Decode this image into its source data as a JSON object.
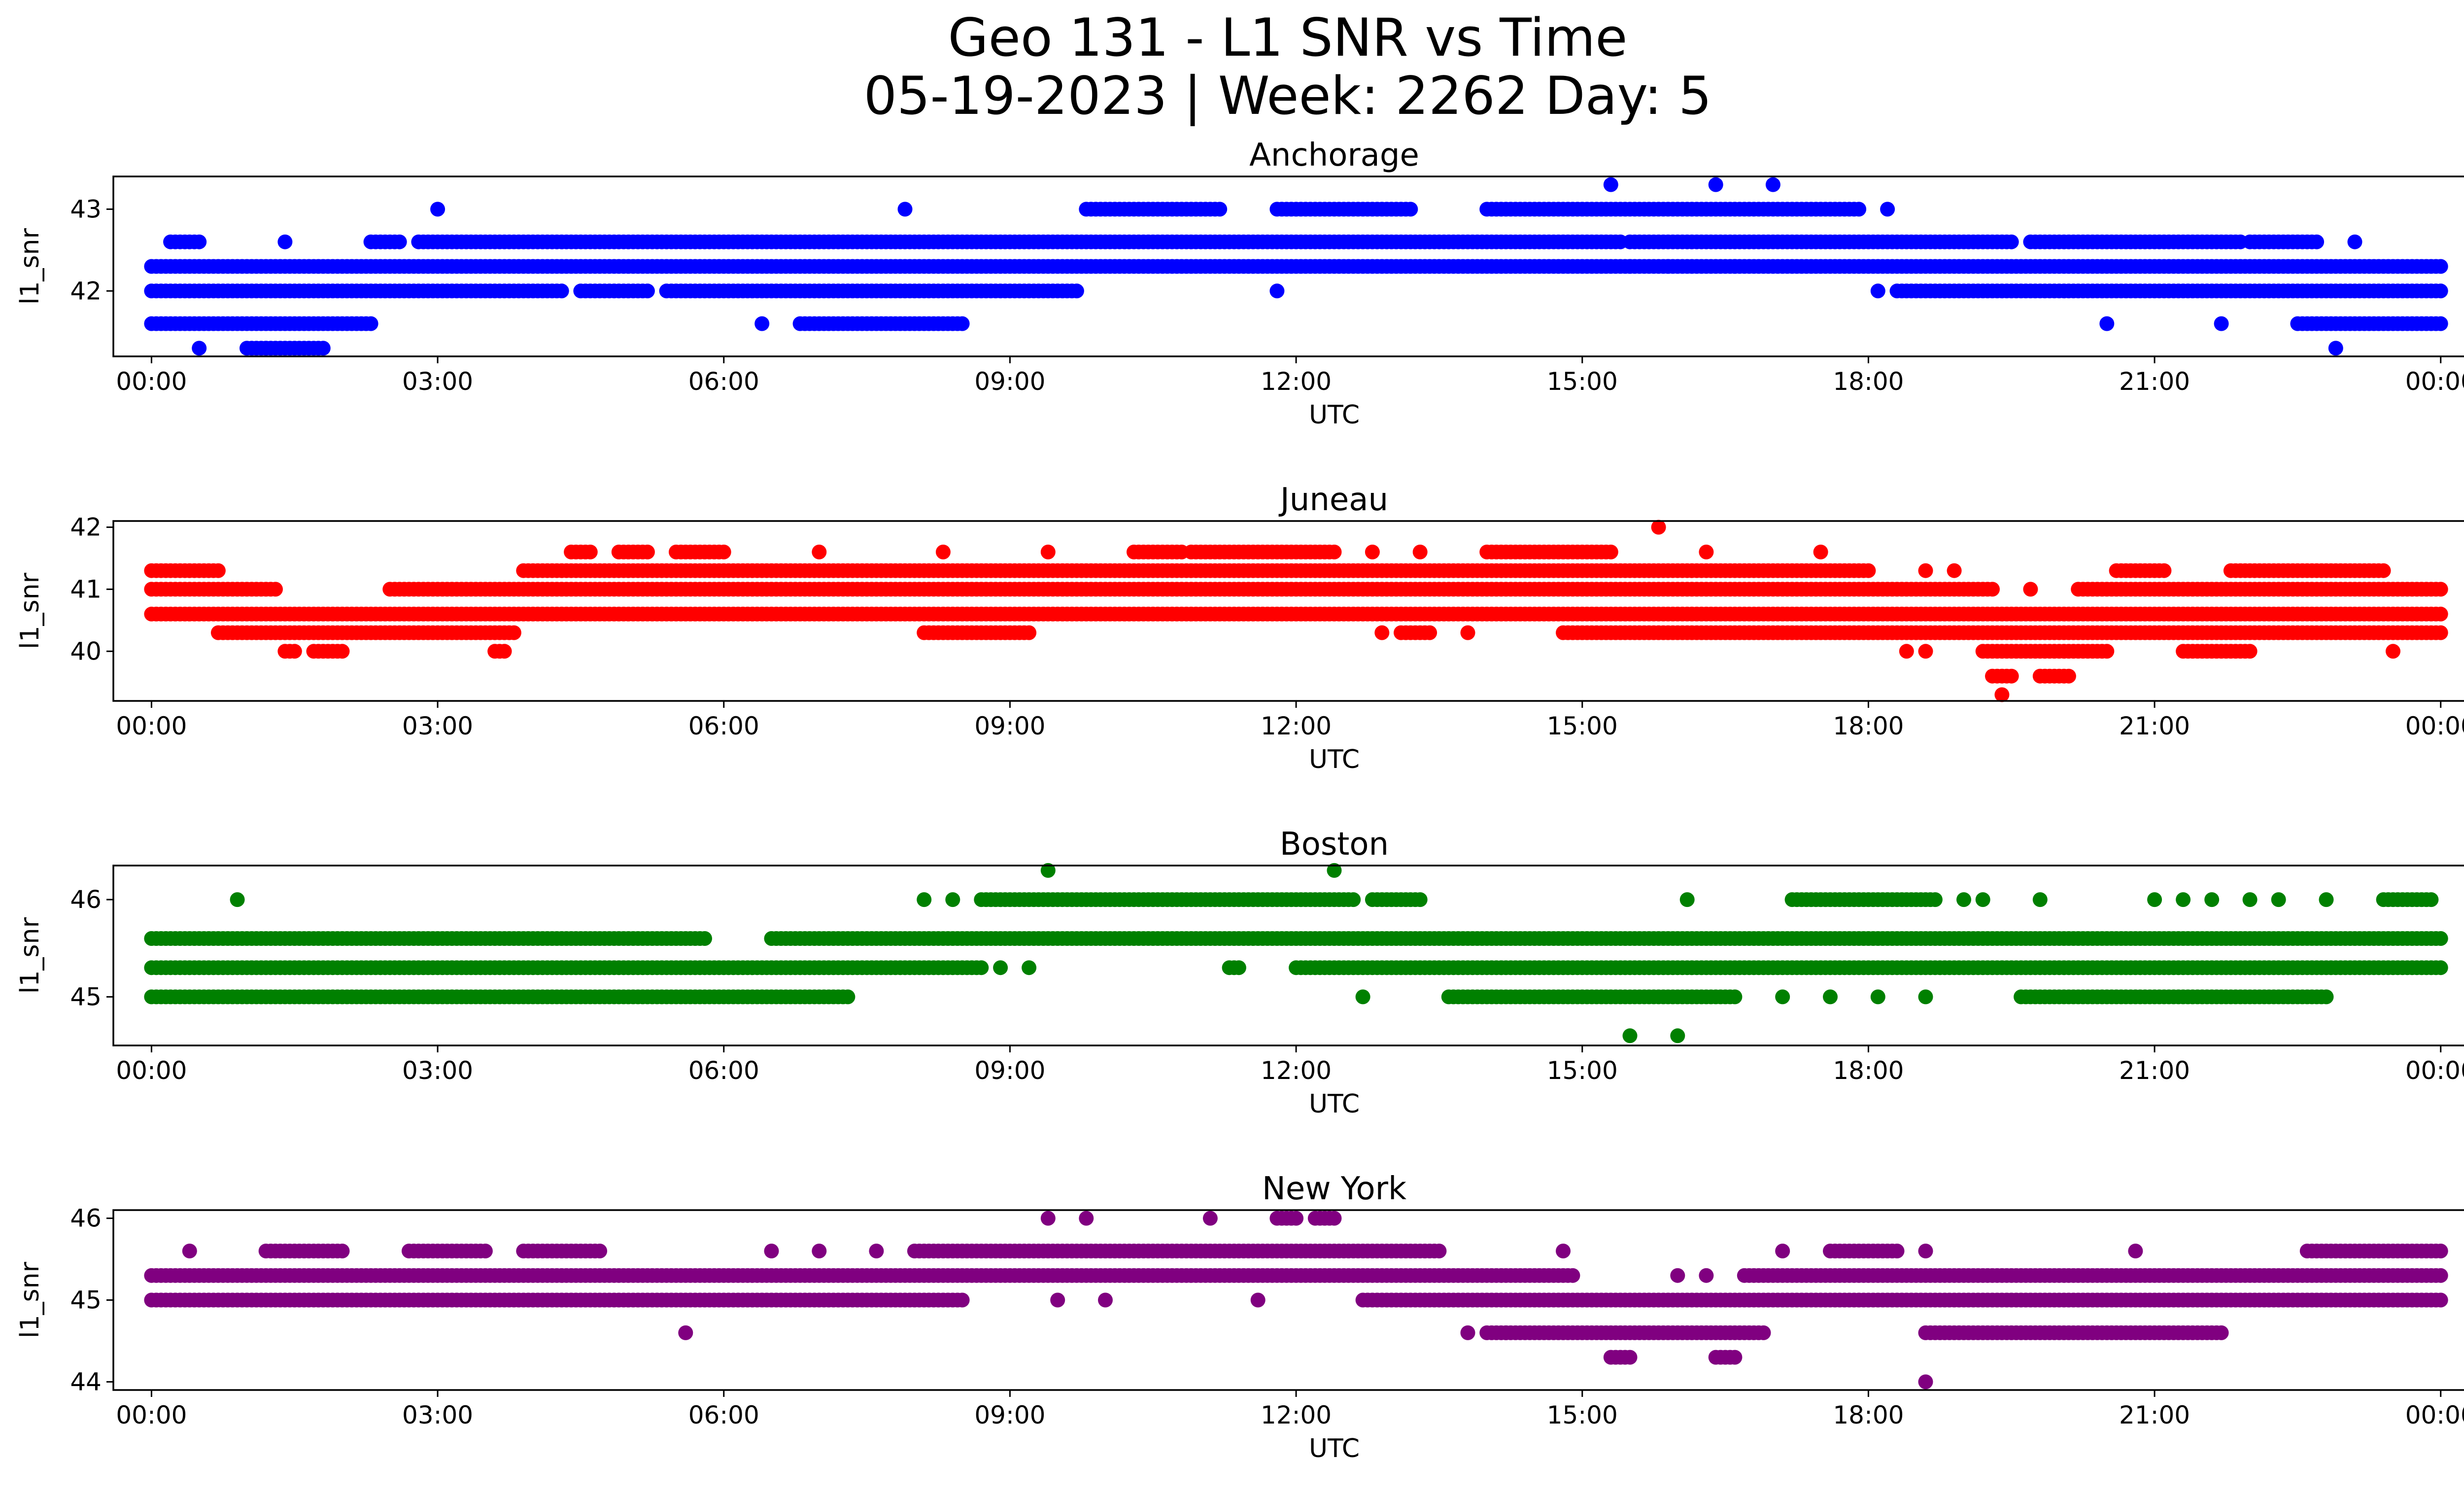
{
  "figure": {
    "title": "Geo 131 - L1 SNR vs Time",
    "subtitle": "05-19-2023 | Week: 2262 Day: 5"
  },
  "chart_data": [
    {
      "type": "scatter",
      "title": "Anchorage",
      "xlabel": "UTC",
      "ylabel": "l1_snr",
      "color": "#0000ff",
      "x_range_hours": [
        -0.4,
        25.2
      ],
      "ylim": [
        41.2,
        43.4
      ],
      "xticks": [
        "00:00",
        "03:00",
        "06:00",
        "09:00",
        "12:00",
        "15:00",
        "18:00",
        "21:00",
        "00:00"
      ],
      "yticks": [
        42,
        43
      ],
      "grid": false,
      "series": [
        {
          "bands": [
            {
              "y": 42.3,
              "segments": [
                [
                  0,
                  24
                ]
              ]
            },
            {
              "y": 42.0,
              "segments": [
                [
                  0,
                  4.3
                ],
                [
                  4.5,
                  5.2
                ],
                [
                  5.4,
                  9.7
                ],
                [
                  18.3,
                  24
                ]
              ]
            },
            {
              "y": 42.6,
              "segments": [
                [
                  0.2,
                  0.5
                ],
                [
                  2.3,
                  2.6
                ],
                [
                  2.8,
                  15.4
                ],
                [
                  15.5,
                  19.5
                ],
                [
                  19.7,
                  21.9
                ],
                [
                  22.0,
                  22.7
                ]
              ]
            },
            {
              "y": 41.6,
              "segments": [
                [
                  0,
                  2.3
                ],
                [
                  6.8,
                  8.5
                ],
                [
                  22.5,
                  24
                ]
              ]
            },
            {
              "y": 43.0,
              "segments": [
                [
                  9.8,
                  11.2
                ],
                [
                  11.8,
                  13.2
                ],
                [
                  14.0,
                  17.9
                ]
              ]
            },
            {
              "y": 41.3,
              "segments": [
                [
                  1.0,
                  1.8
                ]
              ]
            }
          ],
          "points": [
            [
              0.5,
              41.3
            ],
            [
              1.2,
              41.3
            ],
            [
              3.0,
              43.0
            ],
            [
              7.9,
              43.0
            ],
            [
              1.4,
              42.6
            ],
            [
              6.4,
              41.6
            ],
            [
              11.8,
              42.0
            ],
            [
              15.3,
              43.3
            ],
            [
              16.4,
              43.3
            ],
            [
              17.0,
              43.3
            ],
            [
              18.2,
              43.0
            ],
            [
              20.5,
              41.6
            ],
            [
              21.7,
              41.6
            ],
            [
              23.1,
              42.6
            ],
            [
              22.9,
              41.3
            ],
            [
              15.5,
              42.3
            ],
            [
              15.9,
              42.3
            ],
            [
              16.6,
              42.3
            ],
            [
              18.1,
              42.0
            ]
          ]
        }
      ]
    },
    {
      "type": "scatter",
      "title": "Juneau",
      "xlabel": "UTC",
      "ylabel": "l1_snr",
      "color": "#ff0000",
      "x_range_hours": [
        -0.4,
        25.2
      ],
      "ylim": [
        39.2,
        42.1
      ],
      "xticks": [
        "00:00",
        "03:00",
        "06:00",
        "09:00",
        "12:00",
        "15:00",
        "18:00",
        "21:00",
        "00:00"
      ],
      "yticks": [
        40,
        41,
        42
      ],
      "grid": false,
      "series": [
        {
          "bands": [
            {
              "y": 41.3,
              "segments": [
                [
                  0,
                  0.7
                ],
                [
                  3.9,
                  18.0
                ],
                [
                  20.6,
                  21.1
                ],
                [
                  21.8,
                  23.4
                ]
              ]
            },
            {
              "y": 41.0,
              "segments": [
                [
                  0,
                  1.3
                ],
                [
                  2.5,
                  19.3
                ],
                [
                  20.2,
                  24
                ]
              ]
            },
            {
              "y": 40.6,
              "segments": [
                [
                  0,
                  24
                ]
              ]
            },
            {
              "y": 40.3,
              "segments": [
                [
                  0.7,
                  3.8
                ],
                [
                  8.1,
                  9.2
                ],
                [
                  13.1,
                  13.4
                ],
                [
                  14.8,
                  24
                ]
              ]
            },
            {
              "y": 40.0,
              "segments": [
                [
                  1.4,
                  1.5
                ],
                [
                  1.7,
                  2.0
                ],
                [
                  3.6,
                  3.7
                ],
                [
                  19.2,
                  20.5
                ],
                [
                  21.3,
                  22.0
                ]
              ]
            },
            {
              "y": 41.6,
              "segments": [
                [
                  4.4,
                  4.6
                ],
                [
                  4.9,
                  5.2
                ],
                [
                  5.5,
                  6.0
                ],
                [
                  10.3,
                  10.8
                ],
                [
                  10.9,
                  12.4
                ],
                [
                  14.0,
                  15.3
                ]
              ]
            },
            {
              "y": 39.6,
              "segments": [
                [
                  19.3,
                  19.5
                ],
                [
                  19.8,
                  20.1
                ]
              ]
            }
          ],
          "points": [
            [
              15.8,
              42.0
            ],
            [
              19.4,
              39.3
            ],
            [
              9.4,
              41.6
            ],
            [
              7.0,
              41.6
            ],
            [
              8.3,
              41.6
            ],
            [
              16.3,
              41.6
            ],
            [
              17.5,
              41.6
            ],
            [
              12.8,
              41.6
            ],
            [
              13.3,
              41.6
            ],
            [
              23.5,
              40.0
            ],
            [
              18.4,
              40.0
            ],
            [
              18.6,
              40.0
            ],
            [
              18.6,
              41.3
            ],
            [
              18.9,
              41.3
            ],
            [
              19.7,
              41.0
            ],
            [
              12.9,
              40.3
            ],
            [
              13.8,
              40.3
            ]
          ]
        }
      ]
    },
    {
      "type": "scatter",
      "title": "Boston",
      "xlabel": "UTC",
      "ylabel": "l1_snr",
      "color": "#008000",
      "x_range_hours": [
        -0.4,
        25.2
      ],
      "ylim": [
        44.5,
        46.35
      ],
      "xticks": [
        "00:00",
        "03:00",
        "06:00",
        "09:00",
        "12:00",
        "15:00",
        "18:00",
        "21:00",
        "00:00"
      ],
      "yticks": [
        45,
        46
      ],
      "grid": false,
      "series": [
        {
          "bands": [
            {
              "y": 45.6,
              "segments": [
                [
                  0,
                  5.8
                ],
                [
                  6.5,
                  24
                ]
              ]
            },
            {
              "y": 45.3,
              "segments": [
                [
                  0,
                  8.7
                ],
                [
                  11.3,
                  11.4
                ],
                [
                  12.0,
                  24
                ]
              ]
            },
            {
              "y": 45.0,
              "segments": [
                [
                  0,
                  7.3
                ],
                [
                  13.6,
                  16.6
                ],
                [
                  19.6,
                  22.8
                ]
              ]
            },
            {
              "y": 46.0,
              "segments": [
                [
                  8.7,
                  12.6
                ],
                [
                  12.8,
                  13.3
                ],
                [
                  17.2,
                  18.7
                ],
                [
                  23.4,
                  23.9
                ]
              ]
            }
          ],
          "points": [
            [
              0.9,
              46.0
            ],
            [
              8.1,
              46.0
            ],
            [
              8.4,
              46.0
            ],
            [
              9.4,
              46.3
            ],
            [
              12.4,
              46.3
            ],
            [
              16.1,
              46.0
            ],
            [
              19.0,
              46.0
            ],
            [
              19.2,
              46.0
            ],
            [
              19.8,
              46.0
            ],
            [
              21.0,
              46.0
            ],
            [
              21.3,
              46.0
            ],
            [
              21.6,
              46.0
            ],
            [
              22.0,
              46.0
            ],
            [
              22.3,
              46.0
            ],
            [
              22.8,
              46.0
            ],
            [
              15.5,
              44.6
            ],
            [
              16.0,
              44.6
            ],
            [
              12.7,
              45.0
            ],
            [
              17.1,
              45.0
            ],
            [
              17.6,
              45.0
            ],
            [
              18.1,
              45.0
            ],
            [
              18.6,
              45.0
            ],
            [
              8.9,
              45.3
            ],
            [
              9.2,
              45.3
            ]
          ]
        }
      ]
    },
    {
      "type": "scatter",
      "title": "New York",
      "xlabel": "UTC",
      "ylabel": "l1_snr",
      "color": "#800080",
      "x_range_hours": [
        -0.4,
        25.2
      ],
      "ylim": [
        43.9,
        46.1
      ],
      "xticks": [
        "00:00",
        "03:00",
        "06:00",
        "09:00",
        "12:00",
        "15:00",
        "18:00",
        "21:00",
        "00:00"
      ],
      "yticks": [
        44,
        45,
        46
      ],
      "grid": false,
      "series": [
        {
          "bands": [
            {
              "y": 45.3,
              "segments": [
                [
                  0,
                  14.9
                ],
                [
                  16.7,
                  24
                ]
              ]
            },
            {
              "y": 45.0,
              "segments": [
                [
                  0,
                  8.5
                ],
                [
                  12.7,
                  24
                ]
              ]
            },
            {
              "y": 45.6,
              "segments": [
                [
                  1.2,
                  2.0
                ],
                [
                  2.7,
                  3.5
                ],
                [
                  3.9,
                  4.7
                ],
                [
                  8.0,
                  13.5
                ],
                [
                  17.6,
                  18.3
                ],
                [
                  22.6,
                  24
                ]
              ]
            },
            {
              "y": 44.6,
              "segments": [
                [
                  14.0,
                  16.9
                ],
                [
                  18.6,
                  21.7
                ]
              ]
            },
            {
              "y": 44.3,
              "segments": [
                [
                  15.3,
                  15.5
                ],
                [
                  16.4,
                  16.6
                ]
              ]
            },
            {
              "y": 46.0,
              "segments": [
                [
                  11.8,
                  12.0
                ],
                [
                  12.2,
                  12.4
                ]
              ]
            }
          ],
          "points": [
            [
              0.4,
              45.6
            ],
            [
              6.5,
              45.6
            ],
            [
              7.0,
              45.6
            ],
            [
              7.6,
              45.6
            ],
            [
              14.8,
              45.6
            ],
            [
              18.6,
              45.6
            ],
            [
              20.8,
              45.6
            ],
            [
              17.1,
              45.6
            ],
            [
              9.4,
              46.0
            ],
            [
              9.8,
              46.0
            ],
            [
              11.1,
              46.0
            ],
            [
              9.5,
              45.0
            ],
            [
              10.0,
              45.0
            ],
            [
              11.6,
              45.0
            ],
            [
              5.6,
              44.6
            ],
            [
              18.6,
              44.0
            ],
            [
              16.0,
              45.3
            ],
            [
              16.3,
              45.3
            ],
            [
              13.8,
              44.6
            ],
            [
              14.2,
              44.6
            ]
          ]
        }
      ]
    }
  ]
}
